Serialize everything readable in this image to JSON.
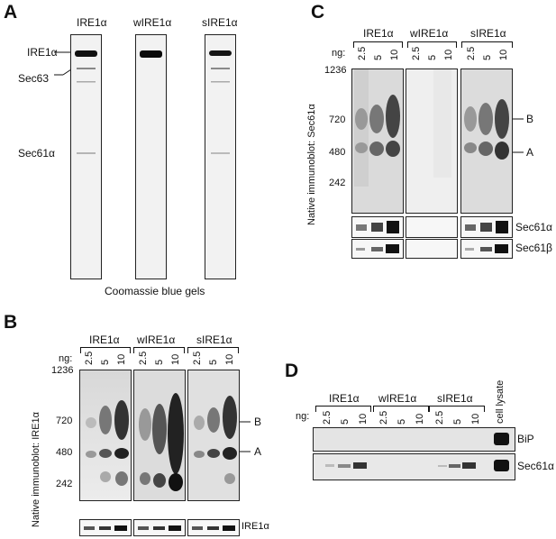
{
  "panels": {
    "a": {
      "letter": "A",
      "gel_titles": [
        "IRE1α",
        "wIRE1α",
        "sIRE1α"
      ],
      "bands": [
        "IRE1α",
        "Sec63",
        "Sec61α"
      ],
      "caption": "Coomassie blue gels"
    },
    "b": {
      "letter": "B",
      "groups": [
        "IRE1α",
        "wIRE1α",
        "sIRE1α"
      ],
      "ng_label": "ng:",
      "ng_values": [
        "2.5",
        "5",
        "10"
      ],
      "axis_label": "Native immunoblot: IRE1α",
      "markers": [
        "1236",
        "720",
        "480",
        "242"
      ],
      "right_labels": [
        "B",
        "A"
      ],
      "strip_label": "IRE1α"
    },
    "c": {
      "letter": "C",
      "groups": [
        "IRE1α",
        "wIRE1α",
        "sIRE1α"
      ],
      "ng_label": "ng:",
      "ng_values": [
        "2.5",
        "5",
        "10"
      ],
      "axis_label": "Native immunoblot: Sec61α",
      "markers": [
        "1236",
        "720",
        "480",
        "242"
      ],
      "right_labels": [
        "B",
        "A"
      ],
      "strip_labels": [
        "Sec61α",
        "Sec61β"
      ]
    },
    "d": {
      "letter": "D",
      "groups": [
        "IRE1α",
        "wIRE1α",
        "sIRE1α"
      ],
      "ng_label": "ng:",
      "ng_values": [
        "2.5",
        "5",
        "10"
      ],
      "extra_lane": "cell lysate",
      "strip_labels": [
        "BiP",
        "Sec61α"
      ]
    }
  }
}
